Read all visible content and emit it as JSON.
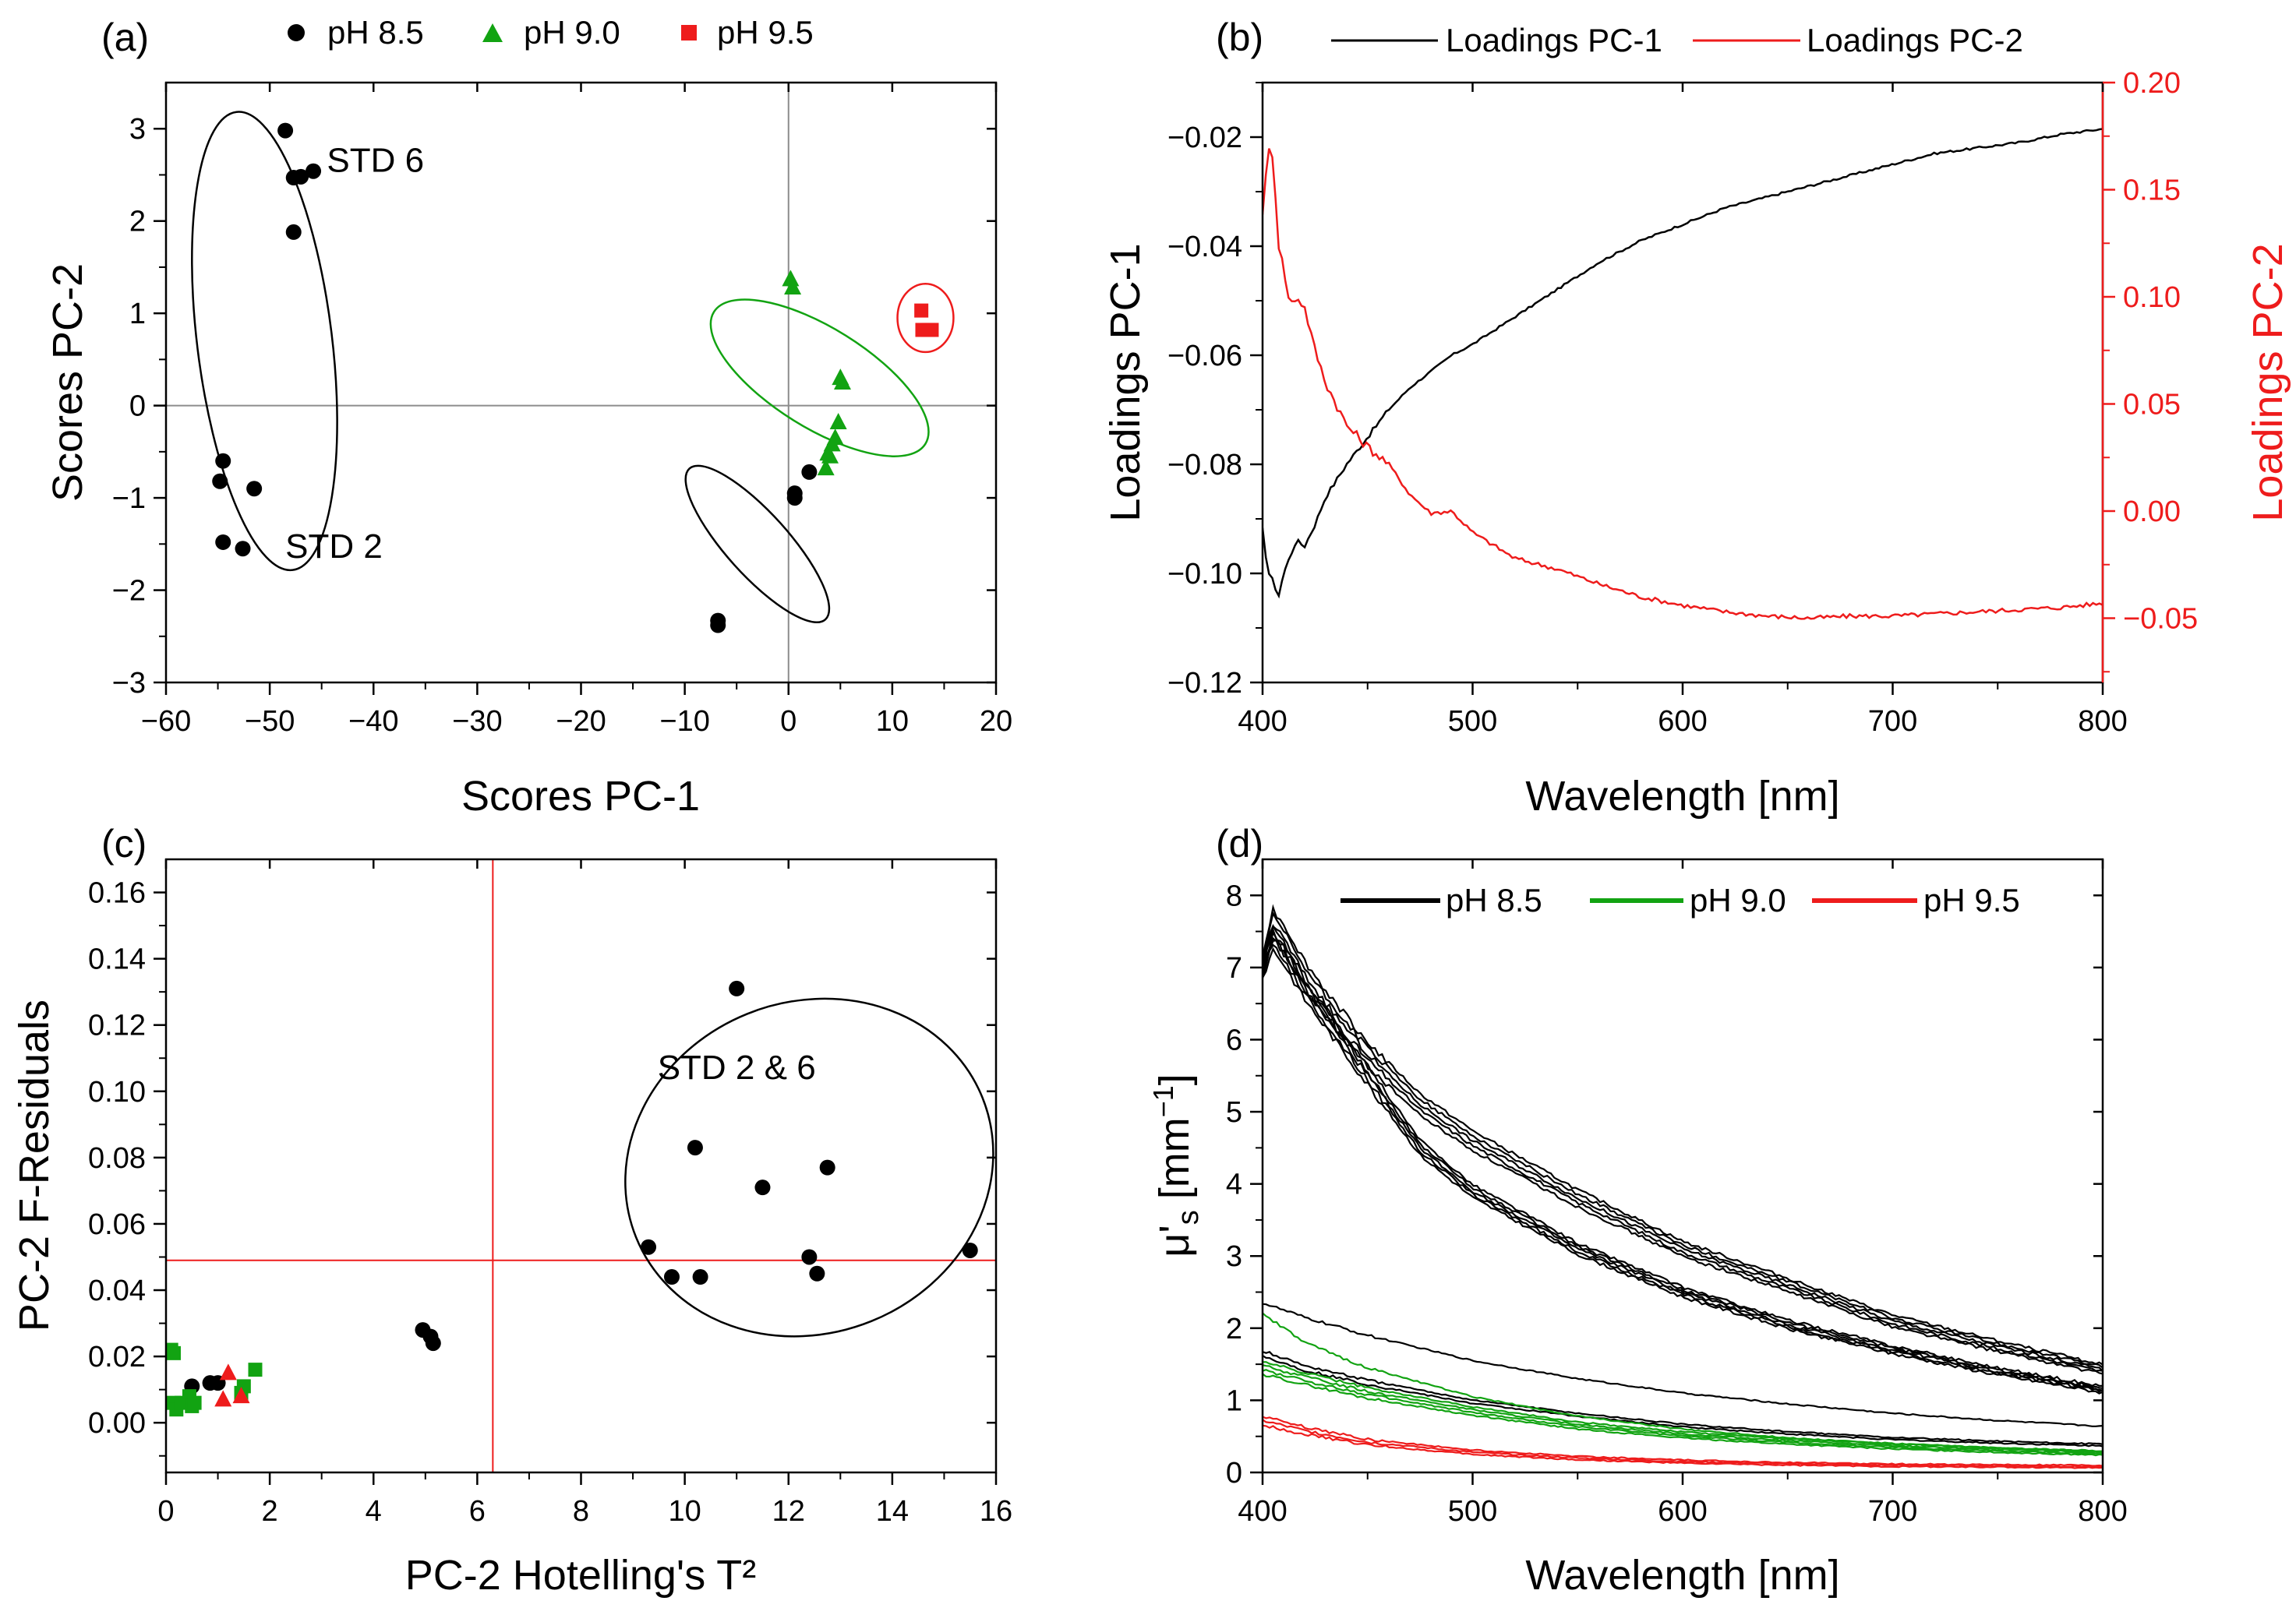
{
  "figure": {
    "panels": [
      "(a)",
      "(b)",
      "(c)",
      "(d)"
    ]
  },
  "colors": {
    "black": "#000000",
    "green": "#12a312",
    "red": "#ee1c1c",
    "guide_gray": "#8c8c8c",
    "guide_red": "#ee1c1c"
  },
  "chart_data": [
    {
      "id": "a",
      "type": "scatter",
      "panel_label": "(a)",
      "xlabel": "Scores PC-1",
      "ylabel": "Scores PC-2",
      "xlim": [
        -60,
        20
      ],
      "ylim": [
        -3,
        3.5
      ],
      "xticks": [
        -60,
        -50,
        -40,
        -30,
        -20,
        -10,
        0,
        10,
        20
      ],
      "yticks": [
        -3,
        -2,
        -1,
        0,
        1,
        2,
        3
      ],
      "legend": [
        {
          "label": "pH 8.5",
          "marker": "circle",
          "color": "#000000"
        },
        {
          "label": "pH 9.0",
          "marker": "triangle",
          "color": "#12a312"
        },
        {
          "label": "pH 9.5",
          "marker": "square",
          "color": "#ee1c1c"
        }
      ],
      "reference_lines": {
        "x": 0,
        "y": 0
      },
      "series": [
        {
          "name": "pH 8.5",
          "marker": "circle",
          "color": "#000000",
          "points": [
            [
              -48.5,
              2.98
            ],
            [
              -47.7,
              2.47
            ],
            [
              -47.0,
              2.48
            ],
            [
              -45.8,
              2.54
            ],
            [
              -47.7,
              1.88
            ],
            [
              -54.5,
              -0.6
            ],
            [
              -54.8,
              -0.82
            ],
            [
              -51.5,
              -0.9
            ],
            [
              -54.5,
              -1.48
            ],
            [
              -52.6,
              -1.55
            ],
            [
              2.0,
              -0.72
            ],
            [
              0.6,
              -0.95
            ],
            [
              0.6,
              -1.0
            ],
            [
              -6.8,
              -2.33
            ],
            [
              -6.8,
              -2.38
            ]
          ]
        },
        {
          "name": "pH 9.0",
          "marker": "triangle",
          "color": "#12a312",
          "points": [
            [
              0.2,
              1.37
            ],
            [
              0.4,
              1.28
            ],
            [
              5.0,
              0.3
            ],
            [
              5.2,
              0.25
            ],
            [
              4.8,
              -0.18
            ],
            [
              4.5,
              -0.35
            ],
            [
              4.2,
              -0.42
            ],
            [
              3.8,
              -0.52
            ],
            [
              4.0,
              -0.55
            ],
            [
              3.6,
              -0.68
            ]
          ]
        },
        {
          "name": "pH 9.5",
          "marker": "square",
          "color": "#ee1c1c",
          "points": [
            [
              12.8,
              1.03
            ],
            [
              12.9,
              0.82
            ],
            [
              13.5,
              0.82
            ],
            [
              13.8,
              0.82
            ]
          ]
        }
      ],
      "ellipses": [
        {
          "cx": -50.5,
          "cy": 0.7,
          "rx_data": 6.5,
          "ry_data": 2.5,
          "angle_deg": -7,
          "color": "#000000"
        },
        {
          "cx": -3.0,
          "cy": -1.5,
          "rx_data": 3.0,
          "ry_data": 1.1,
          "angle_deg": -42,
          "color": "#000000"
        },
        {
          "cx": 3.0,
          "cy": 0.3,
          "rx_data": 4.8,
          "ry_data": 1.35,
          "angle_deg": -58,
          "color": "#12a312"
        },
        {
          "cx": 13.2,
          "cy": 0.95,
          "rx_data": 2.7,
          "ry_data": 0.37,
          "angle_deg": 0,
          "color": "#ee1c1c"
        }
      ],
      "annotations": [
        {
          "text": "STD 6",
          "x": -44.5,
          "y": 2.65
        },
        {
          "text": "STD 2",
          "x": -48.5,
          "y": -1.53
        }
      ]
    },
    {
      "id": "b",
      "type": "line",
      "panel_label": "(b)",
      "xlabel": "Wavelength [nm]",
      "ylabel": "Loadings PC-1",
      "ylabel_right": "Loadings PC-2",
      "xlim": [
        400,
        800
      ],
      "ylim": [
        -0.12,
        -0.01
      ],
      "ylim_right": [
        -0.08,
        0.2
      ],
      "xticks": [
        400,
        500,
        600,
        700,
        800
      ],
      "yticks": [
        -0.12,
        -0.1,
        -0.08,
        -0.06,
        -0.04,
        -0.02
      ],
      "yticks_right": [
        -0.05,
        0.0,
        0.05,
        0.1,
        0.15,
        0.2
      ],
      "legend": [
        {
          "label": "Loadings PC-1",
          "color": "#000000"
        },
        {
          "label": "Loadings PC-2",
          "color": "#ee1c1c"
        }
      ],
      "series": [
        {
          "name": "Loadings PC-1",
          "axis": "left",
          "color": "#000000",
          "x": [
            400,
            402,
            405,
            407,
            410,
            413,
            416,
            420,
            425,
            430,
            440,
            450,
            460,
            470,
            480,
            490,
            500,
            520,
            540,
            560,
            580,
            600,
            620,
            640,
            660,
            680,
            700,
            720,
            740,
            760,
            780,
            800
          ],
          "y": [
            -0.092,
            -0.099,
            -0.101,
            -0.105,
            -0.1,
            -0.097,
            -0.094,
            -0.095,
            -0.091,
            -0.086,
            -0.08,
            -0.075,
            -0.07,
            -0.066,
            -0.063,
            -0.06,
            -0.058,
            -0.053,
            -0.048,
            -0.043,
            -0.039,
            -0.036,
            -0.033,
            -0.031,
            -0.029,
            -0.027,
            -0.025,
            -0.023,
            -0.022,
            -0.021,
            -0.0195,
            -0.0185
          ]
        },
        {
          "name": "Loadings PC-2",
          "axis": "right",
          "color": "#ee1c1c",
          "x": [
            400,
            402,
            404,
            406,
            408,
            410,
            412,
            414,
            416,
            418,
            420,
            425,
            430,
            440,
            450,
            460,
            470,
            480,
            490,
            500,
            520,
            540,
            560,
            580,
            600,
            620,
            640,
            660,
            680,
            700,
            720,
            740,
            760,
            780,
            800
          ],
          "y": [
            0.14,
            0.16,
            0.175,
            0.15,
            0.12,
            0.115,
            0.1,
            0.097,
            0.1,
            0.098,
            0.095,
            0.075,
            0.06,
            0.04,
            0.03,
            0.022,
            0.008,
            -0.001,
            0.0,
            -0.01,
            -0.022,
            -0.027,
            -0.034,
            -0.04,
            -0.044,
            -0.047,
            -0.049,
            -0.05,
            -0.049,
            -0.049,
            -0.048,
            -0.047,
            -0.046,
            -0.045,
            -0.043
          ]
        }
      ]
    },
    {
      "id": "c",
      "type": "scatter",
      "panel_label": "(c)",
      "xlabel": "PC-2 Hotelling's T²",
      "ylabel": "PC-2 F-Residuals",
      "xlim": [
        0,
        16
      ],
      "ylim": [
        -0.015,
        0.17
      ],
      "xticks": [
        0,
        2,
        4,
        6,
        8,
        10,
        12,
        14,
        16
      ],
      "yticks": [
        0.0,
        0.02,
        0.04,
        0.06,
        0.08,
        0.1,
        0.12,
        0.14,
        0.16
      ],
      "reference_lines": {
        "x": 6.3,
        "y": 0.049
      },
      "series": [
        {
          "name": "pH 8.5",
          "marker": "circle",
          "color": "#000000",
          "points": [
            [
              0.5,
              0.011
            ],
            [
              0.85,
              0.012
            ],
            [
              1.0,
              0.012
            ],
            [
              4.95,
              0.028
            ],
            [
              5.1,
              0.026
            ],
            [
              5.15,
              0.024
            ],
            [
              9.3,
              0.053
            ],
            [
              9.75,
              0.044
            ],
            [
              10.2,
              0.083
            ],
            [
              10.3,
              0.044
            ],
            [
              11.0,
              0.131
            ],
            [
              11.5,
              0.071
            ],
            [
              12.4,
              0.05
            ],
            [
              12.55,
              0.045
            ],
            [
              12.75,
              0.077
            ],
            [
              15.5,
              0.052
            ]
          ]
        },
        {
          "name": "pH 9.0",
          "marker": "square",
          "color": "#12a312",
          "points": [
            [
              0.1,
              0.022
            ],
            [
              0.15,
              0.021
            ],
            [
              0.15,
              0.006
            ],
            [
              0.2,
              0.004
            ],
            [
              0.3,
              0.006
            ],
            [
              0.45,
              0.008
            ],
            [
              0.5,
              0.005
            ],
            [
              0.55,
              0.006
            ],
            [
              1.45,
              0.009
            ],
            [
              1.5,
              0.011
            ],
            [
              1.72,
              0.016
            ]
          ]
        },
        {
          "name": "pH 9.5",
          "marker": "triangle",
          "color": "#ee1c1c",
          "points": [
            [
              1.1,
              0.007
            ],
            [
              1.2,
              0.015
            ],
            [
              1.45,
              0.008
            ]
          ]
        }
      ],
      "ellipses": [
        {
          "cx": 12.4,
          "cy": 0.077,
          "rx_data": 3.6,
          "ry_data": 0.05,
          "angle_deg": -22,
          "color": "#000000"
        }
      ],
      "annotations": [
        {
          "text": "STD 2 & 6",
          "x": 11.0,
          "y": 0.107
        }
      ]
    },
    {
      "id": "d",
      "type": "line",
      "panel_label": "(d)",
      "xlabel": "Wavelength [nm]",
      "ylabel": "μ's [mm⁻¹]",
      "ylabel_parts": {
        "mu": "μ",
        "prime": "'",
        "sub": "s",
        "unit": "[mm",
        "sup": "−1",
        "close": "]"
      },
      "xlim": [
        400,
        800
      ],
      "ylim": [
        0,
        8.5
      ],
      "xticks": [
        400,
        500,
        600,
        700,
        800
      ],
      "yticks": [
        0,
        1,
        2,
        3,
        4,
        5,
        6,
        7,
        8
      ],
      "legend": [
        {
          "label": "pH 8.5",
          "color": "#000000"
        },
        {
          "label": "pH 9.0",
          "color": "#12a312"
        },
        {
          "label": "pH 9.5",
          "color": "#ee1c1c"
        }
      ],
      "series": [
        {
          "name": "pH 8.5 (STD 6 group)",
          "color": "#000000",
          "copies": 5,
          "spread": 0.08,
          "x": [
            400,
            405,
            410,
            420,
            430,
            450,
            475,
            500,
            550,
            600,
            650,
            700,
            750,
            800
          ],
          "y": [
            7.0,
            7.6,
            7.4,
            6.9,
            6.5,
            5.8,
            5.1,
            4.6,
            3.8,
            3.1,
            2.6,
            2.1,
            1.75,
            1.43
          ]
        },
        {
          "name": "pH 8.5 (STD 2 group)",
          "color": "#000000",
          "copies": 5,
          "spread": 0.06,
          "x": [
            400,
            405,
            410,
            420,
            430,
            450,
            475,
            500,
            550,
            600,
            650,
            700,
            750,
            800
          ],
          "y": [
            7.0,
            7.4,
            7.2,
            6.7,
            6.3,
            5.5,
            4.5,
            3.9,
            3.1,
            2.5,
            2.05,
            1.7,
            1.4,
            1.15
          ]
        },
        {
          "name": "pH 8.5 (other)",
          "color": "#000000",
          "copies": 1,
          "spread": 0,
          "x": [
            400,
            420,
            450,
            500,
            550,
            600,
            650,
            700,
            750,
            800
          ],
          "y": [
            2.35,
            2.15,
            1.9,
            1.55,
            1.3,
            1.1,
            0.95,
            0.82,
            0.72,
            0.64
          ]
        },
        {
          "name": "pH 8.5 (other 2)",
          "color": "#000000",
          "copies": 2,
          "spread": 0.06,
          "x": [
            400,
            420,
            450,
            500,
            550,
            600,
            650,
            700,
            750,
            800
          ],
          "y": [
            1.65,
            1.45,
            1.25,
            0.98,
            0.8,
            0.65,
            0.55,
            0.47,
            0.42,
            0.38
          ]
        },
        {
          "name": "pH 9.0",
          "color": "#12a312",
          "copies": 4,
          "spread": 0.05,
          "x": [
            400,
            420,
            450,
            500,
            550,
            600,
            650,
            700,
            750,
            800
          ],
          "y": [
            1.45,
            1.3,
            1.1,
            0.85,
            0.65,
            0.52,
            0.43,
            0.36,
            0.31,
            0.27
          ]
        },
        {
          "name": "pH 9.0 (top)",
          "color": "#12a312",
          "copies": 1,
          "spread": 0,
          "x": [
            400,
            420,
            450,
            500,
            550,
            600,
            650,
            700,
            750,
            800
          ],
          "y": [
            2.2,
            1.8,
            1.45,
            1.05,
            0.78,
            0.6,
            0.48,
            0.4,
            0.34,
            0.29
          ]
        },
        {
          "name": "pH 9.5",
          "color": "#ee1c1c",
          "copies": 3,
          "spread": 0.05,
          "x": [
            400,
            420,
            450,
            500,
            550,
            600,
            650,
            700,
            750,
            800
          ],
          "y": [
            0.72,
            0.58,
            0.42,
            0.28,
            0.2,
            0.15,
            0.12,
            0.1,
            0.09,
            0.08
          ]
        }
      ]
    }
  ]
}
